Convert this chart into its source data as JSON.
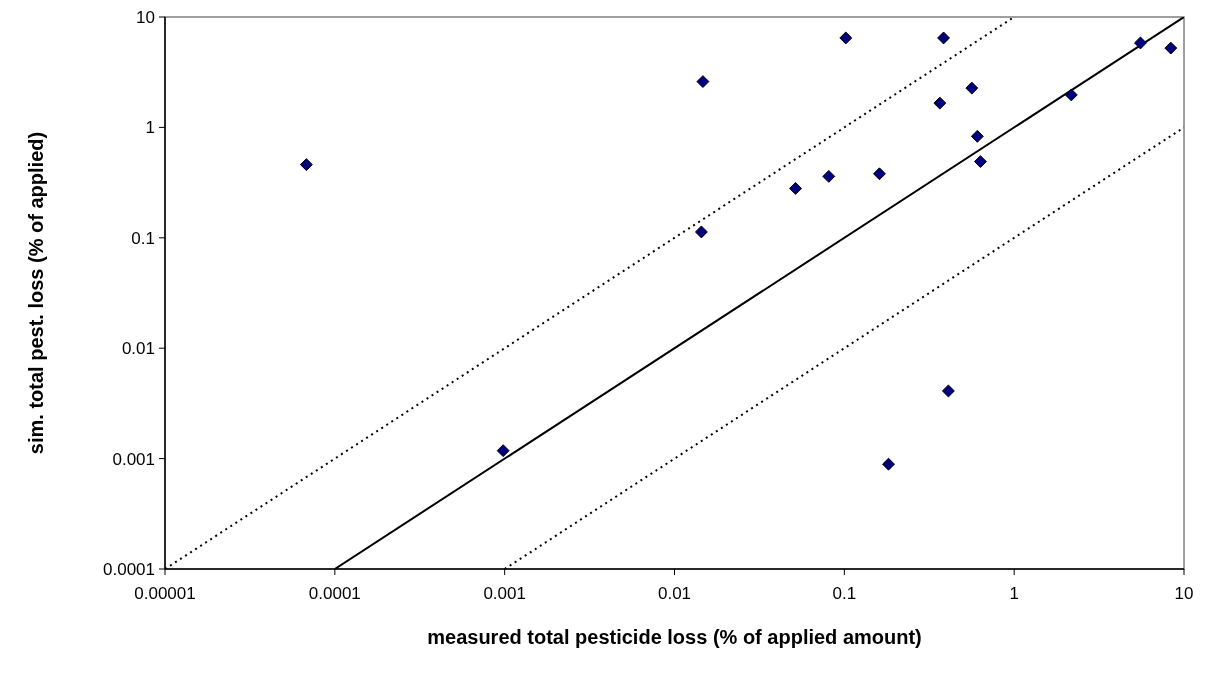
{
  "chart_data": {
    "type": "scatter",
    "xlabel": "measured total pesticide loss (% of applied amount)",
    "ylabel": "sim. total pest. loss (% of applied)",
    "log": "xy",
    "grid": false,
    "xlim": [
      1e-05,
      10
    ],
    "ylim": [
      0.0001,
      10
    ],
    "xticks": [
      {
        "value": 1e-05,
        "label": "0.00001"
      },
      {
        "value": 0.0001,
        "label": "0.0001"
      },
      {
        "value": 0.001,
        "label": "0.001"
      },
      {
        "value": 0.01,
        "label": "0.01"
      },
      {
        "value": 0.1,
        "label": "0.1"
      },
      {
        "value": 1,
        "label": "1"
      },
      {
        "value": 10,
        "label": "10"
      }
    ],
    "yticks": [
      {
        "value": 0.0001,
        "label": "0.0001"
      },
      {
        "value": 0.001,
        "label": "0.001"
      },
      {
        "value": 0.01,
        "label": "0.01"
      },
      {
        "value": 0.1,
        "label": "0.1"
      },
      {
        "value": 1,
        "label": "1"
      },
      {
        "value": 10,
        "label": "10"
      }
    ],
    "series": [
      {
        "color": "#000080",
        "marker": "diamond",
        "x": [
          6.8e-05,
          0.0147,
          0.102,
          0.384,
          5.54,
          8.36,
          0.563,
          0.365,
          2.17,
          0.607,
          0.633,
          0.0516,
          0.081,
          0.161,
          0.0144,
          0.00098,
          0.182,
          0.41
        ],
        "values": [
          0.46,
          2.6,
          6.46,
          6.46,
          5.82,
          5.23,
          2.27,
          1.66,
          1.97,
          0.83,
          0.49,
          0.28,
          0.36,
          0.38,
          0.113,
          0.00118,
          0.00089,
          0.0041
        ]
      },
      {
        "type": "line",
        "color": "#000000",
        "marker": "none",
        "line_style": "solid",
        "x": [
          0.0001,
          10
        ],
        "values": [
          0.0001,
          10
        ]
      },
      {
        "type": "line",
        "color": "#000000",
        "marker": "none",
        "line_style": "dotted",
        "x": [
          1e-05,
          1
        ],
        "values": [
          0.0001,
          10
        ]
      },
      {
        "type": "line",
        "color": "#000000",
        "marker": "none",
        "line_style": "dotted",
        "x": [
          0.001,
          10
        ],
        "values": [
          0.0001,
          1
        ]
      }
    ]
  }
}
